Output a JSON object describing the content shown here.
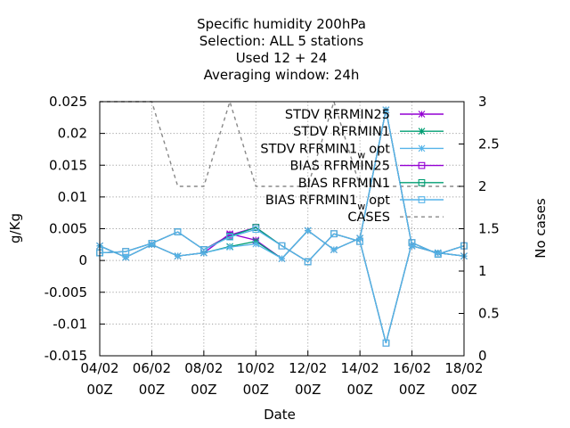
{
  "chart_data": {
    "type": "line",
    "title_lines": [
      "Specific humidity 200hPa",
      "Selection: ALL      5 stations",
      "Used  12 + 24",
      "Averaging window: 24h"
    ],
    "xlabel": "Date",
    "ylabel": "g/Kg",
    "y2label": "No cases",
    "x_tick_labels": [
      [
        "04/02",
        "00Z"
      ],
      [
        "06/02",
        "00Z"
      ],
      [
        "08/02",
        "00Z"
      ],
      [
        "10/02",
        "00Z"
      ],
      [
        "12/02",
        "00Z"
      ],
      [
        "14/02",
        "00Z"
      ],
      [
        "16/02",
        "00Z"
      ],
      [
        "18/02",
        "00Z"
      ]
    ],
    "x_range_days": [
      4,
      18
    ],
    "ylim": [
      -0.015,
      0.025
    ],
    "y_ticks": [
      "0.025",
      "0.02",
      "0.015",
      "0.01",
      "0.005",
      "0",
      "-0.005",
      "-0.01",
      "-0.015"
    ],
    "y_tick_values": [
      0.025,
      0.02,
      0.015,
      0.01,
      0.005,
      0,
      -0.005,
      -0.01,
      -0.015
    ],
    "y2lim": [
      0,
      3
    ],
    "y2_ticks": [
      "3",
      "2.5",
      "2",
      "1.5",
      "1",
      "0.5",
      "0"
    ],
    "y2_tick_values": [
      3,
      2.5,
      2,
      1.5,
      1,
      0.5,
      0
    ],
    "grid": true,
    "legend_position": "top-right",
    "x": [
      4,
      5,
      6,
      7,
      8,
      9,
      10,
      11,
      12,
      13,
      14,
      15,
      16,
      17,
      18
    ],
    "series": [
      {
        "name": "STDV RFRMIN25",
        "name_main": "STDV RFRMIN25",
        "name_sub": "",
        "color": "#9400d3",
        "marker": "star",
        "dash": false,
        "axis": "y",
        "values": [
          0.0023,
          0.0005,
          0.0025,
          0.0007,
          0.0012,
          0.0042,
          0.0032,
          0.0003,
          0.0047,
          0.0017,
          0.0035,
          0.0237,
          0.0023,
          0.0012,
          0.0007
        ]
      },
      {
        "name": "STDV RFRMIN1",
        "name_main": "STDV RFRMIN1",
        "name_sub": "",
        "color": "#009e73",
        "marker": "star",
        "dash": false,
        "axis": "y",
        "values": [
          0.0023,
          0.0005,
          0.0025,
          0.0007,
          0.0012,
          0.0022,
          0.003,
          0.0003,
          0.0047,
          0.0017,
          0.0035,
          0.0237,
          0.0023,
          0.0012,
          0.0007
        ]
      },
      {
        "name": "STDV RFRMIN1_w_opt",
        "name_main": "STDV RFRMIN1",
        "name_sub": "w",
        "name_tail": "opt",
        "color": "#56b4e9",
        "marker": "star",
        "dash": false,
        "axis": "y",
        "values": [
          0.0023,
          0.0005,
          0.0025,
          0.0007,
          0.0012,
          0.0021,
          0.0026,
          0.0003,
          0.0047,
          0.0017,
          0.0035,
          0.0237,
          0.0023,
          0.0012,
          0.0007
        ]
      },
      {
        "name": "BIAS RFRMIN25",
        "name_main": "BIAS RFRMIN25",
        "name_sub": "",
        "color": "#9400d3",
        "marker": "square",
        "dash": false,
        "axis": "y",
        "values": [
          0.0012,
          0.0014,
          0.0027,
          0.0045,
          0.0017,
          0.004,
          0.0052,
          0.0023,
          -0.0002,
          0.0042,
          0.003,
          -0.013,
          0.0028,
          0.001,
          0.0023
        ]
      },
      {
        "name": "BIAS RFRMIN1",
        "name_main": "BIAS RFRMIN1",
        "name_sub": "",
        "color": "#009e73",
        "marker": "square",
        "dash": false,
        "axis": "y",
        "values": [
          0.0012,
          0.0014,
          0.0027,
          0.0045,
          0.0017,
          0.0038,
          0.0052,
          0.0023,
          -0.0002,
          0.0042,
          0.003,
          -0.013,
          0.0028,
          0.001,
          0.0023
        ]
      },
      {
        "name": "BIAS RFRMIN1_w_opt",
        "name_main": "BIAS RFRMIN1",
        "name_sub": "w",
        "name_tail": "opt",
        "color": "#56b4e9",
        "marker": "square",
        "dash": false,
        "axis": "y",
        "values": [
          0.0012,
          0.0014,
          0.0027,
          0.0045,
          0.0017,
          0.0037,
          0.0049,
          0.0023,
          -0.0002,
          0.0042,
          0.003,
          -0.013,
          0.0028,
          0.001,
          0.0023
        ]
      },
      {
        "name": "CASES",
        "name_main": "CASES",
        "name_sub": "",
        "color": "#888888",
        "marker": "none",
        "dash": true,
        "axis": "y2",
        "values": [
          3,
          3,
          3,
          2,
          2,
          3,
          2,
          2,
          2,
          3,
          2,
          2,
          2,
          2,
          2
        ]
      }
    ]
  }
}
